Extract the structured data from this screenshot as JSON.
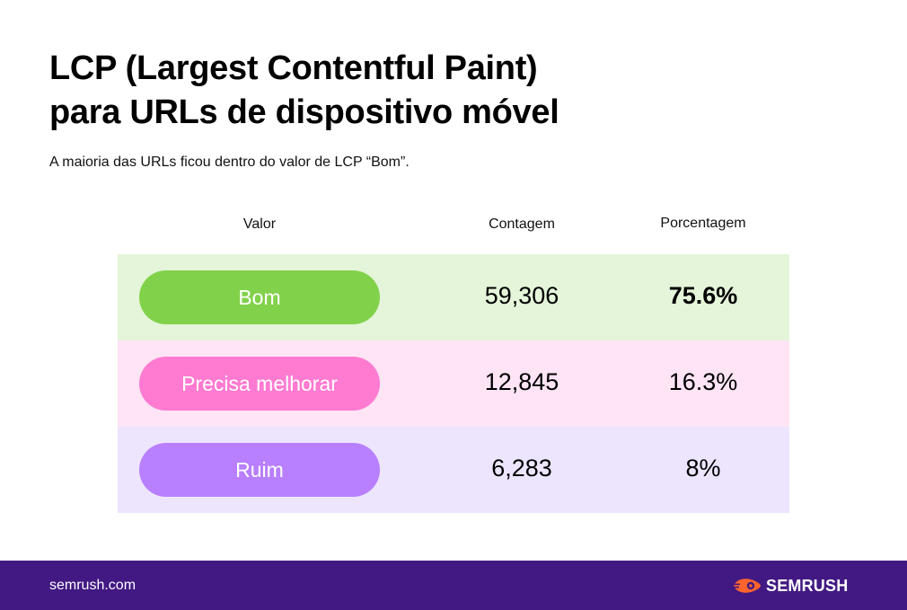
{
  "header": {
    "title_line1": "LCP (Largest Contentful Paint)",
    "title_line2": "para URLs de dispositivo móvel",
    "subtitle": "A maioria das URLs ficou dentro do valor de LCP “Bom”."
  },
  "chart_data": {
    "type": "table",
    "columns": [
      "Valor",
      "Contagem",
      "Porcentagem"
    ],
    "rows": [
      {
        "valor": "Bom",
        "contagem": "59,306",
        "porcentagem": "75.6%",
        "pill_color": "#82d14b",
        "row_color": "#e4f5d9"
      },
      {
        "valor": "Precisa melhorar",
        "contagem": "12,845",
        "porcentagem": "16.3%",
        "pill_color": "#ff7ad1",
        "row_color": "#fee4f5"
      },
      {
        "valor": "Ruim",
        "contagem": "6,283",
        "porcentagem": "8%",
        "pill_color": "#b87ffe",
        "row_color": "#ede5fe"
      }
    ]
  },
  "footer": {
    "url": "semrush.com",
    "logo_text": "SEMRUSH",
    "logo_icon": "semrush-flame-icon",
    "background_color": "#421983",
    "logo_accent_color": "#ff642d"
  }
}
